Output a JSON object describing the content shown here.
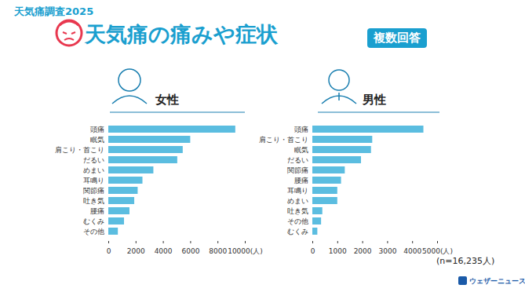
{
  "header": {
    "survey": "天気痛調査2025",
    "title": "天気痛の痛みや症状",
    "badge": "複数回答"
  },
  "chart_data": [
    {
      "type": "bar",
      "title": "女性",
      "orientation": "horizontal",
      "categories": [
        "頭痛",
        "眠気",
        "肩こり・首こり",
        "だるい",
        "めまい",
        "耳鳴り",
        "関節痛",
        "吐き気",
        "腰痛",
        "むくみ",
        "その他"
      ],
      "values": [
        9300,
        6000,
        5450,
        5050,
        3300,
        2500,
        2150,
        1900,
        1550,
        1150,
        700
      ],
      "color": "#5bbde0",
      "xlim": [
        0,
        10000
      ],
      "xticks": [
        0,
        2000,
        4000,
        6000,
        8000,
        {
          "value": 10000,
          "label": "10000(人)"
        }
      ],
      "grid": false
    },
    {
      "type": "bar",
      "title": "男性",
      "orientation": "horizontal",
      "categories": [
        "頭痛",
        "肩こり・首こり",
        "眠気",
        "だるい",
        "関節痛",
        "腰痛",
        "耳鳴り",
        "めまい",
        "吐き気",
        "その他",
        "むくみ"
      ],
      "values": [
        4450,
        2400,
        2350,
        1950,
        1300,
        1150,
        1000,
        1000,
        400,
        350,
        200
      ],
      "color": "#5bbde0",
      "xlim": [
        0,
        5000
      ],
      "xticks": [
        0,
        1000,
        2000,
        3000,
        4000,
        {
          "value": 5000,
          "label": "5000(人)"
        }
      ],
      "grid": false
    }
  ],
  "note": "(n=16,235人)",
  "source": "ウェザーニュース"
}
